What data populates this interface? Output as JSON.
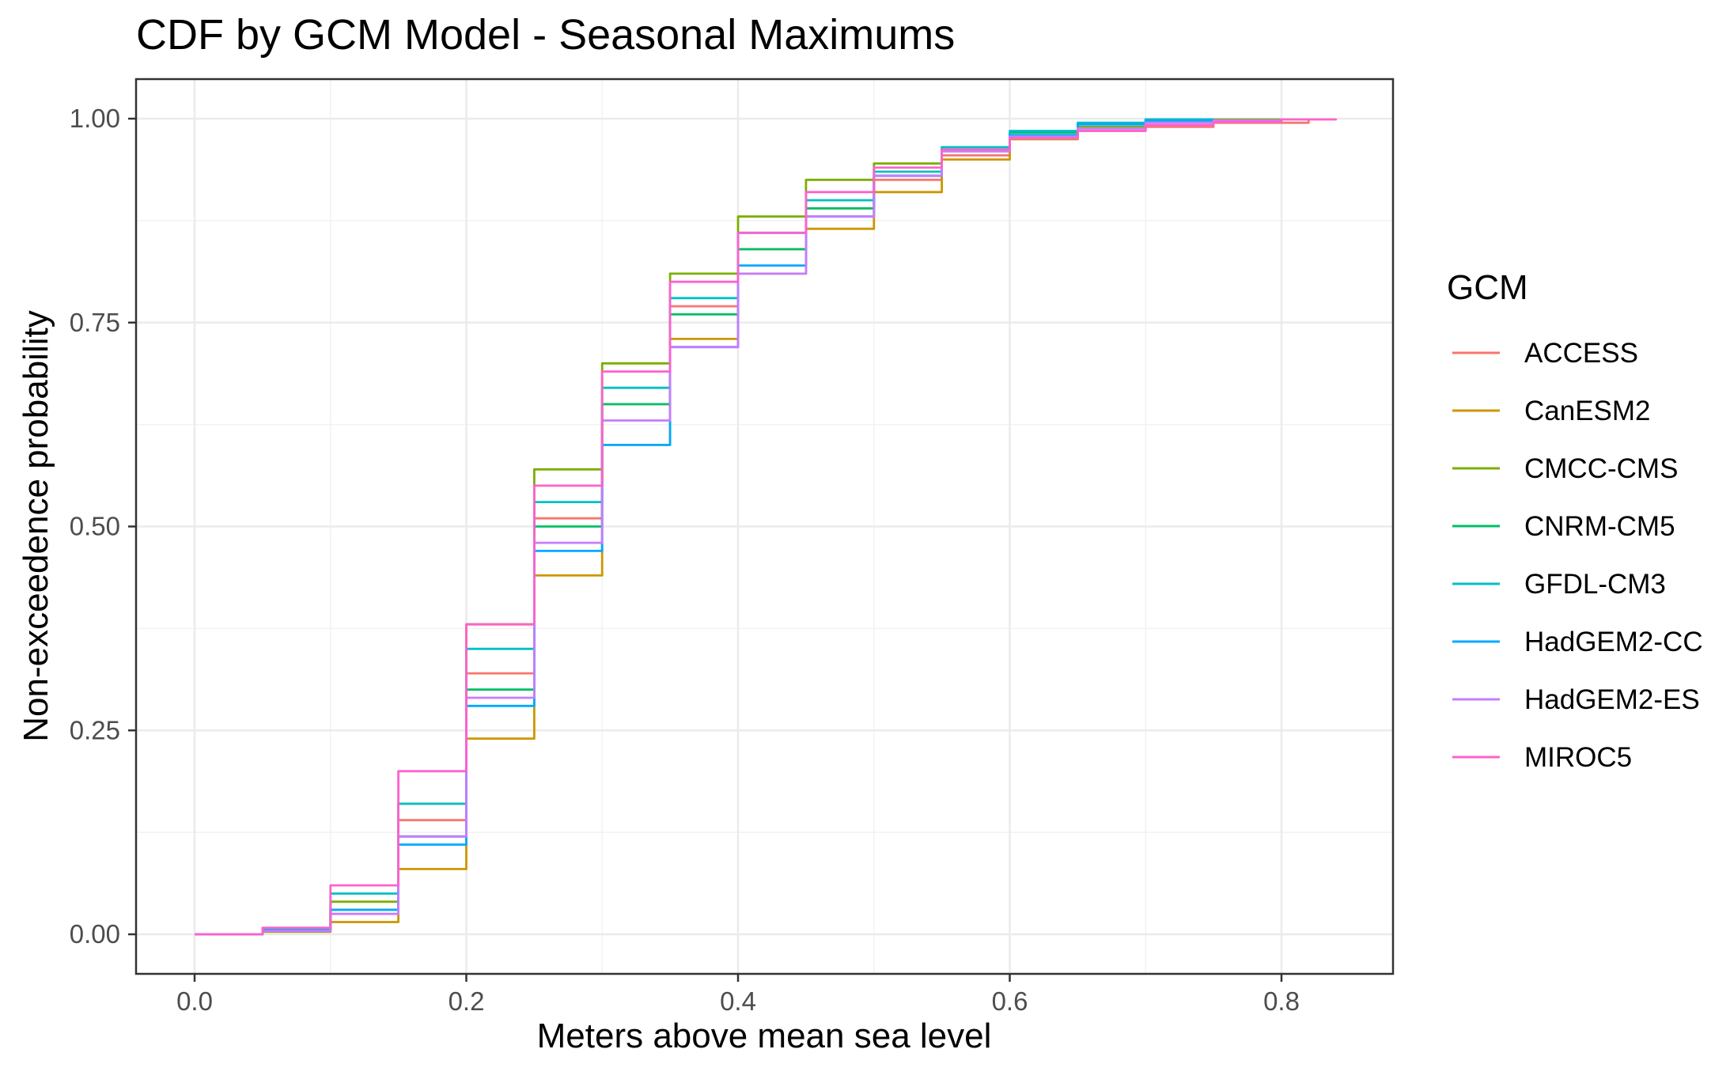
{
  "chart_data": {
    "type": "line",
    "title": "CDF by GCM Model - Seasonal Maximums",
    "xlabel": "Meters above mean sea level",
    "ylabel": "Non-exceedence probability",
    "xlim": [
      -0.01,
      0.88
    ],
    "ylim": [
      -0.05,
      1.05
    ],
    "x_ticks": [
      0.0,
      0.2,
      0.4,
      0.6,
      0.8
    ],
    "x_tick_labels": [
      "0.0",
      "0.2",
      "0.4",
      "0.6",
      "0.8"
    ],
    "y_ticks": [
      0.0,
      0.25,
      0.5,
      0.75,
      1.0
    ],
    "y_tick_labels": [
      "0.00",
      "0.25",
      "0.50",
      "0.75",
      "1.00"
    ],
    "grid": true,
    "legend": {
      "title": "GCM",
      "position": "right"
    },
    "series": [
      {
        "name": "ACCESS",
        "color": "#F8766D",
        "x": [
          0.0,
          0.05,
          0.1,
          0.15,
          0.2,
          0.25,
          0.3,
          0.35,
          0.4,
          0.45,
          0.5,
          0.55,
          0.6,
          0.65,
          0.7,
          0.75,
          0.82
        ],
        "y": [
          0.0,
          0.005,
          0.03,
          0.14,
          0.32,
          0.51,
          0.65,
          0.77,
          0.84,
          0.89,
          0.925,
          0.955,
          0.975,
          0.985,
          0.99,
          0.995,
          1.0
        ]
      },
      {
        "name": "CanESM2",
        "color": "#CD9600",
        "x": [
          0.0,
          0.05,
          0.1,
          0.15,
          0.2,
          0.25,
          0.3,
          0.35,
          0.4,
          0.45,
          0.5,
          0.55,
          0.6,
          0.65,
          0.7,
          0.75,
          0.8
        ],
        "y": [
          0.0,
          0.003,
          0.015,
          0.08,
          0.24,
          0.44,
          0.6,
          0.73,
          0.81,
          0.865,
          0.91,
          0.95,
          0.975,
          0.988,
          0.995,
          0.998,
          1.0
        ]
      },
      {
        "name": "CMCC-CMS",
        "color": "#7CAE00",
        "x": [
          0.0,
          0.05,
          0.1,
          0.15,
          0.2,
          0.25,
          0.3,
          0.35,
          0.4,
          0.45,
          0.5,
          0.55,
          0.6,
          0.65,
          0.7,
          0.75,
          0.8
        ],
        "y": [
          0.0,
          0.006,
          0.04,
          0.16,
          0.38,
          0.57,
          0.7,
          0.81,
          0.88,
          0.925,
          0.945,
          0.962,
          0.978,
          0.99,
          0.996,
          0.999,
          1.0
        ]
      },
      {
        "name": "CNRM-CM5",
        "color": "#00BE67",
        "x": [
          0.0,
          0.05,
          0.1,
          0.15,
          0.2,
          0.25,
          0.3,
          0.35,
          0.4,
          0.45,
          0.5,
          0.55,
          0.6,
          0.65,
          0.7,
          0.75
        ],
        "y": [
          0.0,
          0.004,
          0.03,
          0.12,
          0.3,
          0.5,
          0.65,
          0.76,
          0.84,
          0.89,
          0.93,
          0.965,
          0.983,
          0.994,
          0.999,
          1.0
        ]
      },
      {
        "name": "GFDL-CM3",
        "color": "#00BFC4",
        "x": [
          0.0,
          0.05,
          0.1,
          0.15,
          0.2,
          0.25,
          0.3,
          0.35,
          0.4,
          0.45,
          0.5,
          0.55,
          0.6,
          0.65,
          0.7,
          0.75
        ],
        "y": [
          0.0,
          0.007,
          0.05,
          0.16,
          0.35,
          0.53,
          0.67,
          0.78,
          0.86,
          0.9,
          0.935,
          0.965,
          0.985,
          0.995,
          0.999,
          1.0
        ]
      },
      {
        "name": "HadGEM2-CC",
        "color": "#00A9FF",
        "x": [
          0.0,
          0.05,
          0.1,
          0.15,
          0.2,
          0.25,
          0.3,
          0.35,
          0.4,
          0.45,
          0.5,
          0.55,
          0.6,
          0.65,
          0.7,
          0.75
        ],
        "y": [
          0.0,
          0.005,
          0.03,
          0.11,
          0.28,
          0.47,
          0.6,
          0.72,
          0.82,
          0.88,
          0.93,
          0.96,
          0.98,
          0.993,
          0.998,
          1.0
        ]
      },
      {
        "name": "HadGEM2-ES",
        "color": "#C77CFF",
        "x": [
          0.0,
          0.05,
          0.1,
          0.15,
          0.2,
          0.25,
          0.3,
          0.35,
          0.4,
          0.45,
          0.5,
          0.55,
          0.6,
          0.65,
          0.7,
          0.75,
          0.8
        ],
        "y": [
          0.0,
          0.004,
          0.025,
          0.12,
          0.29,
          0.48,
          0.63,
          0.72,
          0.81,
          0.88,
          0.93,
          0.96,
          0.978,
          0.988,
          0.995,
          0.998,
          1.0
        ]
      },
      {
        "name": "MIROC5",
        "color": "#FF61CC",
        "x": [
          0.0,
          0.05,
          0.1,
          0.15,
          0.2,
          0.25,
          0.3,
          0.35,
          0.4,
          0.45,
          0.5,
          0.55,
          0.6,
          0.65,
          0.7,
          0.75,
          0.8,
          0.84
        ],
        "y": [
          0.0,
          0.008,
          0.06,
          0.2,
          0.38,
          0.55,
          0.69,
          0.8,
          0.86,
          0.91,
          0.94,
          0.962,
          0.976,
          0.985,
          0.992,
          0.996,
          0.999,
          1.0
        ]
      }
    ]
  }
}
